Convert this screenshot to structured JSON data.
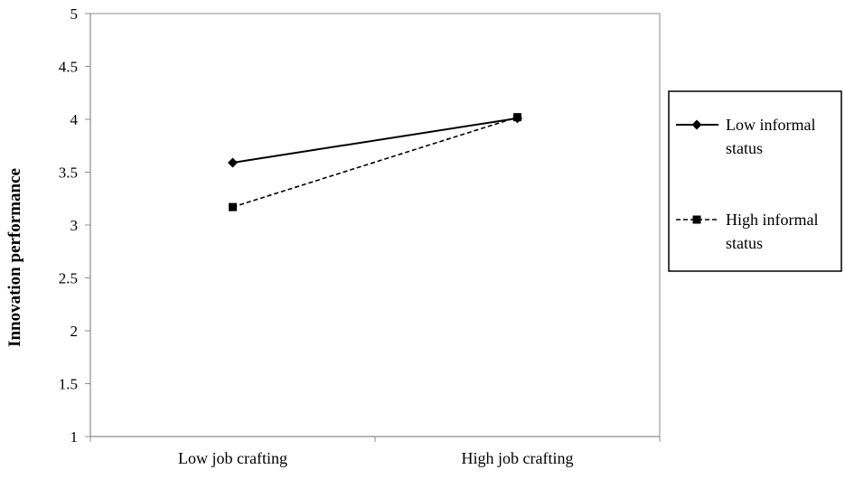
{
  "chart_data": {
    "type": "line",
    "title": "",
    "xlabel": "",
    "ylabel": "Innovation performance",
    "categories": [
      "Low job crafting",
      "High job crafting"
    ],
    "ylim": [
      1,
      5
    ],
    "yticks": [
      "1",
      "1.5",
      "2",
      "2.5",
      "3",
      "3.5",
      "4",
      "4.5",
      "5"
    ],
    "grid": false,
    "legend_position": "right",
    "series": [
      {
        "name": "Low informal status",
        "name_lines": [
          "Low informal",
          "status"
        ],
        "values": [
          3.59,
          4.01
        ],
        "line_style": "solid",
        "marker": "diamond",
        "color": "#000000"
      },
      {
        "name": "High informal status",
        "name_lines": [
          "High informal",
          "status"
        ],
        "values": [
          3.17,
          4.02
        ],
        "line_style": "dashed",
        "marker": "square",
        "color": "#000000"
      }
    ]
  }
}
